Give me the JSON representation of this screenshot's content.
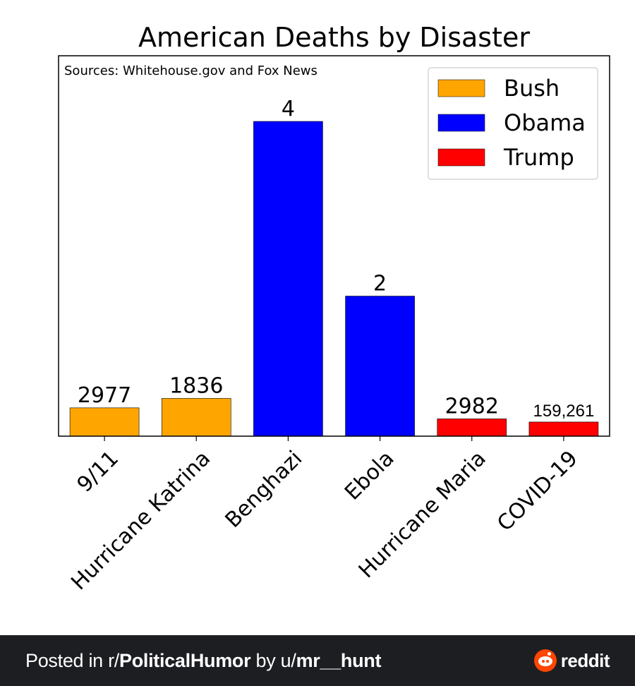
{
  "chart_data": {
    "type": "bar",
    "title": "American Deaths by Disaster",
    "annotation": "Sources: Whitehouse.gov and Fox News",
    "categories": [
      "9/11",
      "Hurricane Katrina",
      "Benghazi",
      "Ebola",
      "Hurricane Maria",
      "COVID-19"
    ],
    "data_labels": [
      "2977",
      "1836",
      "4",
      "2",
      "2982",
      "159,261"
    ],
    "bar_groups": [
      "Bush",
      "Bush",
      "Obama",
      "Obama",
      "Trump",
      "Trump"
    ],
    "bar_heights_relative": [
      0.09,
      0.12,
      1.0,
      0.445,
      0.055,
      0.045
    ],
    "legend": [
      {
        "name": "Bush",
        "color": "#ffa500"
      },
      {
        "name": "Obama",
        "color": "#0000ff"
      },
      {
        "name": "Trump",
        "color": "#ff0000"
      }
    ],
    "legend_position": "top-right",
    "grid": false,
    "xlabel": "",
    "ylabel": ""
  },
  "footer": {
    "prefix": "Posted in r/",
    "subreddit": "PoliticalHumor",
    "by": " by u/",
    "user": "mr__hunt",
    "brand": "reddit"
  },
  "icons": {
    "brand_logo": "reddit-alien-icon"
  }
}
